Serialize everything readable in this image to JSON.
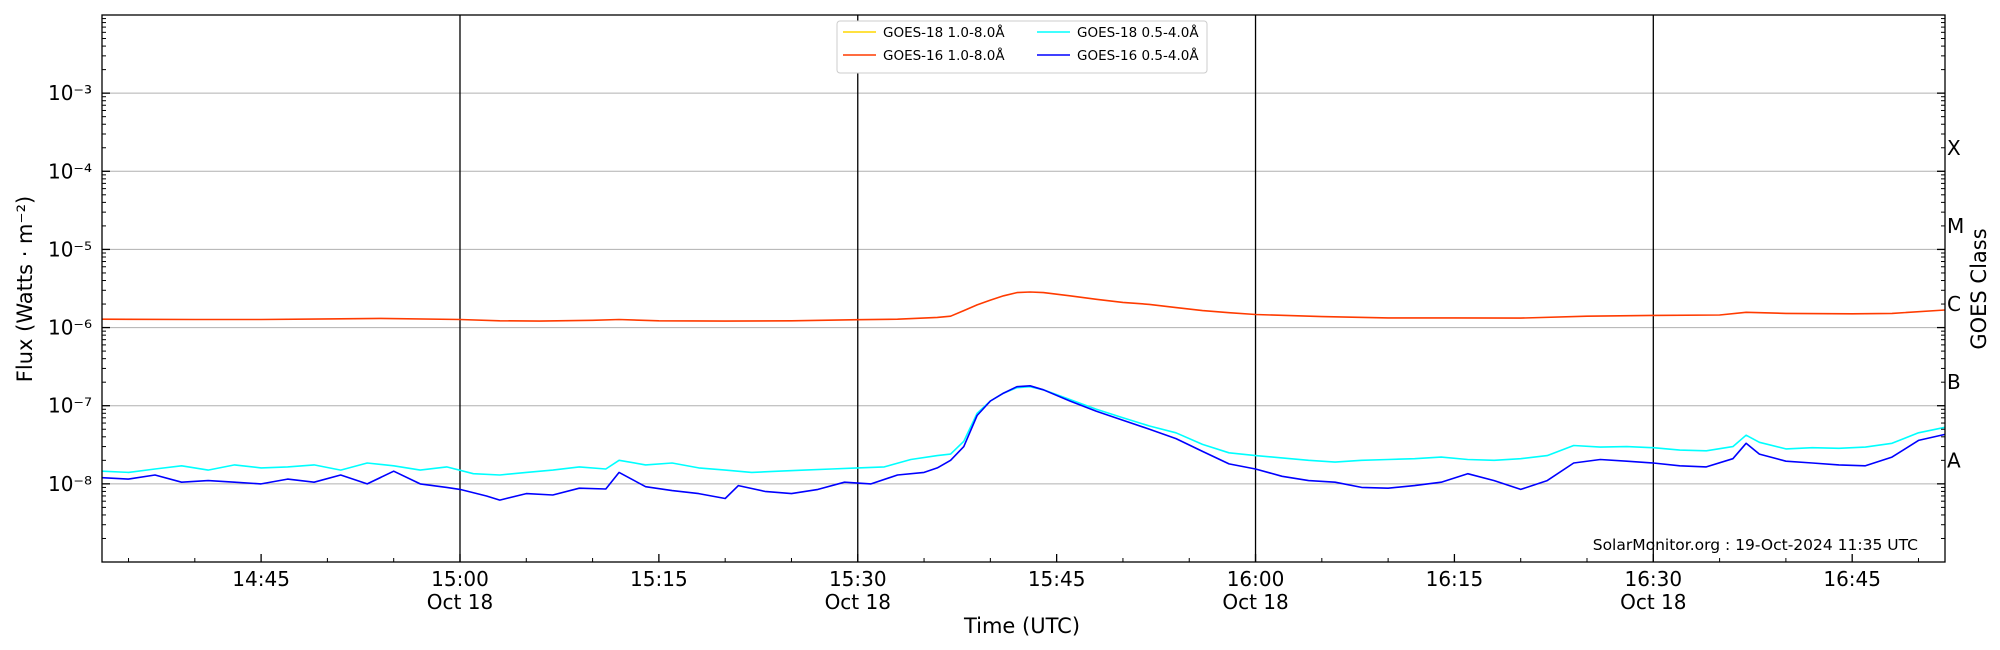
{
  "chart_data": {
    "type": "line",
    "xlabel": "Time (UTC)",
    "ylabel": "Flux (Watts · m⁻²)",
    "ylabel2": "GOES Class",
    "y_scale": "log",
    "ylim": [
      1e-09,
      0.01
    ],
    "x_range": [
      "14:33",
      "16:52"
    ],
    "x_ticks": [
      {
        "time": "14:45",
        "label": "14:45",
        "sublabel": ""
      },
      {
        "time": "15:00",
        "label": "15:00",
        "sublabel": "Oct 18"
      },
      {
        "time": "15:15",
        "label": "15:15",
        "sublabel": ""
      },
      {
        "time": "15:30",
        "label": "15:30",
        "sublabel": "Oct 18"
      },
      {
        "time": "15:45",
        "label": "15:45",
        "sublabel": ""
      },
      {
        "time": "16:00",
        "label": "16:00",
        "sublabel": "Oct 18"
      },
      {
        "time": "16:15",
        "label": "16:15",
        "sublabel": ""
      },
      {
        "time": "16:30",
        "label": "16:30",
        "sublabel": "Oct 18"
      },
      {
        "time": "16:45",
        "label": "16:45",
        "sublabel": ""
      }
    ],
    "day_lines": [
      "15:00",
      "15:30",
      "16:00",
      "16:30"
    ],
    "y_ticks": [
      {
        "value": 1e-08,
        "label": "10⁻⁸"
      },
      {
        "value": 1e-07,
        "label": "10⁻⁷"
      },
      {
        "value": 1e-06,
        "label": "10⁻⁶"
      },
      {
        "value": 1e-05,
        "label": "10⁻⁵"
      },
      {
        "value": 0.0001,
        "label": "10⁻⁴"
      },
      {
        "value": 0.001,
        "label": "10⁻³"
      }
    ],
    "class_labels": [
      {
        "label": "A",
        "value": 2e-08
      },
      {
        "label": "B",
        "value": 2e-07
      },
      {
        "label": "C",
        "value": 2e-06
      },
      {
        "label": "M",
        "value": 2e-05
      },
      {
        "label": "X",
        "value": 0.0002
      }
    ],
    "legend_position": "top-center",
    "credit": "SolarMonitor.org : 19-Oct-2024 11:35 UTC",
    "series": [
      {
        "name": "GOES-18 1.0-8.0Å",
        "color": "#ffd700",
        "points": [
          [
            "14:33",
            1.3e-06
          ],
          [
            "16:52",
            1.3e-06
          ]
        ],
        "visible": false
      },
      {
        "name": "GOES-16 1.0-8.0Å",
        "color": "#ff3b00",
        "points": [
          [
            "14:33",
            1.28e-06
          ],
          [
            "14:40",
            1.27e-06
          ],
          [
            "14:45",
            1.27e-06
          ],
          [
            "14:50",
            1.29e-06
          ],
          [
            "14:54",
            1.31e-06
          ],
          [
            "15:00",
            1.27e-06
          ],
          [
            "15:03",
            1.22e-06
          ],
          [
            "15:06",
            1.21e-06
          ],
          [
            "15:10",
            1.24e-06
          ],
          [
            "15:12",
            1.27e-06
          ],
          [
            "15:15",
            1.22e-06
          ],
          [
            "15:20",
            1.21e-06
          ],
          [
            "15:25",
            1.22e-06
          ],
          [
            "15:30",
            1.26e-06
          ],
          [
            "15:33",
            1.28e-06
          ],
          [
            "15:36",
            1.35e-06
          ],
          [
            "15:37",
            1.4e-06
          ],
          [
            "15:38",
            1.65e-06
          ],
          [
            "15:39",
            1.95e-06
          ],
          [
            "15:40",
            2.25e-06
          ],
          [
            "15:41",
            2.55e-06
          ],
          [
            "15:42",
            2.8e-06
          ],
          [
            "15:43",
            2.85e-06
          ],
          [
            "15:44",
            2.8e-06
          ],
          [
            "15:46",
            2.55e-06
          ],
          [
            "15:48",
            2.3e-06
          ],
          [
            "15:50",
            2.1e-06
          ],
          [
            "15:52",
            1.98e-06
          ],
          [
            "15:54",
            1.8e-06
          ],
          [
            "15:56",
            1.65e-06
          ],
          [
            "15:58",
            1.55e-06
          ],
          [
            "16:00",
            1.47e-06
          ],
          [
            "16:05",
            1.38e-06
          ],
          [
            "16:10",
            1.33e-06
          ],
          [
            "16:15",
            1.33e-06
          ],
          [
            "16:20",
            1.32e-06
          ],
          [
            "16:25",
            1.4e-06
          ],
          [
            "16:30",
            1.43e-06
          ],
          [
            "16:35",
            1.45e-06
          ],
          [
            "16:37",
            1.57e-06
          ],
          [
            "16:40",
            1.52e-06
          ],
          [
            "16:45",
            1.5e-06
          ],
          [
            "16:48",
            1.52e-06
          ],
          [
            "16:52",
            1.68e-06
          ]
        ]
      },
      {
        "name": "GOES-18 0.5-4.0Å",
        "color": "#00ffff",
        "points": [
          [
            "14:33",
            1.45e-08
          ],
          [
            "14:35",
            1.4e-08
          ],
          [
            "14:37",
            1.55e-08
          ],
          [
            "14:39",
            1.7e-08
          ],
          [
            "14:41",
            1.5e-08
          ],
          [
            "14:43",
            1.75e-08
          ],
          [
            "14:45",
            1.6e-08
          ],
          [
            "14:47",
            1.65e-08
          ],
          [
            "14:49",
            1.75e-08
          ],
          [
            "14:51",
            1.5e-08
          ],
          [
            "14:53",
            1.85e-08
          ],
          [
            "14:55",
            1.7e-08
          ],
          [
            "14:57",
            1.5e-08
          ],
          [
            "14:59",
            1.65e-08
          ],
          [
            "15:01",
            1.35e-08
          ],
          [
            "15:03",
            1.3e-08
          ],
          [
            "15:05",
            1.4e-08
          ],
          [
            "15:07",
            1.5e-08
          ],
          [
            "15:09",
            1.65e-08
          ],
          [
            "15:11",
            1.55e-08
          ],
          [
            "15:12",
            2e-08
          ],
          [
            "15:14",
            1.75e-08
          ],
          [
            "15:16",
            1.85e-08
          ],
          [
            "15:18",
            1.6e-08
          ],
          [
            "15:20",
            1.5e-08
          ],
          [
            "15:22",
            1.4e-08
          ],
          [
            "15:24",
            1.45e-08
          ],
          [
            "15:26",
            1.5e-08
          ],
          [
            "15:28",
            1.55e-08
          ],
          [
            "15:30",
            1.6e-08
          ],
          [
            "15:32",
            1.65e-08
          ],
          [
            "15:34",
            2.05e-08
          ],
          [
            "15:36",
            2.3e-08
          ],
          [
            "15:37",
            2.4e-08
          ],
          [
            "15:38",
            3.5e-08
          ],
          [
            "15:39",
            8e-08
          ],
          [
            "15:40",
            1.15e-07
          ],
          [
            "15:41",
            1.45e-07
          ],
          [
            "15:42",
            1.7e-07
          ],
          [
            "15:43",
            1.75e-07
          ],
          [
            "15:44",
            1.6e-07
          ],
          [
            "15:46",
            1.2e-07
          ],
          [
            "15:48",
            9e-08
          ],
          [
            "15:50",
            7e-08
          ],
          [
            "15:52",
            5.5e-08
          ],
          [
            "15:54",
            4.5e-08
          ],
          [
            "15:56",
            3.2e-08
          ],
          [
            "15:58",
            2.5e-08
          ],
          [
            "16:00",
            2.3e-08
          ],
          [
            "16:02",
            2.15e-08
          ],
          [
            "16:04",
            2e-08
          ],
          [
            "16:06",
            1.9e-08
          ],
          [
            "16:08",
            2e-08
          ],
          [
            "16:10",
            2.05e-08
          ],
          [
            "16:12",
            2.1e-08
          ],
          [
            "16:14",
            2.2e-08
          ],
          [
            "16:16",
            2.05e-08
          ],
          [
            "16:18",
            2e-08
          ],
          [
            "16:20",
            2.1e-08
          ],
          [
            "16:22",
            2.3e-08
          ],
          [
            "16:24",
            3.1e-08
          ],
          [
            "16:26",
            2.95e-08
          ],
          [
            "16:28",
            3e-08
          ],
          [
            "16:30",
            2.9e-08
          ],
          [
            "16:32",
            2.7e-08
          ],
          [
            "16:34",
            2.65e-08
          ],
          [
            "16:36",
            3e-08
          ],
          [
            "16:37",
            4.2e-08
          ],
          [
            "16:38",
            3.4e-08
          ],
          [
            "16:40",
            2.8e-08
          ],
          [
            "16:42",
            2.9e-08
          ],
          [
            "16:44",
            2.85e-08
          ],
          [
            "16:46",
            2.95e-08
          ],
          [
            "16:48",
            3.3e-08
          ],
          [
            "16:50",
            4.5e-08
          ],
          [
            "16:52",
            5.3e-08
          ]
        ]
      },
      {
        "name": "GOES-16 0.5-4.0Å",
        "color": "#0000ff",
        "points": [
          [
            "14:33",
            1.2e-08
          ],
          [
            "14:35",
            1.15e-08
          ],
          [
            "14:37",
            1.3e-08
          ],
          [
            "14:39",
            1.05e-08
          ],
          [
            "14:41",
            1.1e-08
          ],
          [
            "14:43",
            1.05e-08
          ],
          [
            "14:45",
            1e-08
          ],
          [
            "14:47",
            1.15e-08
          ],
          [
            "14:49",
            1.05e-08
          ],
          [
            "14:51",
            1.3e-08
          ],
          [
            "14:53",
            1e-08
          ],
          [
            "14:55",
            1.45e-08
          ],
          [
            "14:57",
            1e-08
          ],
          [
            "14:59",
            9e-09
          ],
          [
            "15:00",
            8.5e-09
          ],
          [
            "15:02",
            7e-09
          ],
          [
            "15:03",
            6.2e-09
          ],
          [
            "15:05",
            7.5e-09
          ],
          [
            "15:07",
            7.2e-09
          ],
          [
            "15:09",
            8.8e-09
          ],
          [
            "15:11",
            8.6e-09
          ],
          [
            "15:12",
            1.4e-08
          ],
          [
            "15:14",
            9.2e-09
          ],
          [
            "15:16",
            8.2e-09
          ],
          [
            "15:18",
            7.5e-09
          ],
          [
            "15:20",
            6.5e-09
          ],
          [
            "15:21",
            9.5e-09
          ],
          [
            "15:23",
            8e-09
          ],
          [
            "15:25",
            7.5e-09
          ],
          [
            "15:27",
            8.5e-09
          ],
          [
            "15:29",
            1.05e-08
          ],
          [
            "15:31",
            1e-08
          ],
          [
            "15:33",
            1.3e-08
          ],
          [
            "15:35",
            1.4e-08
          ],
          [
            "15:36",
            1.6e-08
          ],
          [
            "15:37",
            2e-08
          ],
          [
            "15:38",
            3e-08
          ],
          [
            "15:39",
            7.5e-08
          ],
          [
            "15:40",
            1.15e-07
          ],
          [
            "15:41",
            1.45e-07
          ],
          [
            "15:42",
            1.75e-07
          ],
          [
            "15:43",
            1.8e-07
          ],
          [
            "15:44",
            1.6e-07
          ],
          [
            "15:46",
            1.15e-07
          ],
          [
            "15:48",
            8.5e-08
          ],
          [
            "15:50",
            6.5e-08
          ],
          [
            "15:52",
            5e-08
          ],
          [
            "15:54",
            3.8e-08
          ],
          [
            "15:56",
            2.6e-08
          ],
          [
            "15:58",
            1.8e-08
          ],
          [
            "16:00",
            1.55e-08
          ],
          [
            "16:02",
            1.25e-08
          ],
          [
            "16:04",
            1.1e-08
          ],
          [
            "16:06",
            1.05e-08
          ],
          [
            "16:08",
            9e-09
          ],
          [
            "16:10",
            8.8e-09
          ],
          [
            "16:12",
            9.5e-09
          ],
          [
            "16:14",
            1.05e-08
          ],
          [
            "16:16",
            1.35e-08
          ],
          [
            "16:18",
            1.1e-08
          ],
          [
            "16:20",
            8.5e-09
          ],
          [
            "16:22",
            1.1e-08
          ],
          [
            "16:24",
            1.85e-08
          ],
          [
            "16:26",
            2.05e-08
          ],
          [
            "16:28",
            1.95e-08
          ],
          [
            "16:30",
            1.85e-08
          ],
          [
            "16:32",
            1.7e-08
          ],
          [
            "16:34",
            1.65e-08
          ],
          [
            "16:36",
            2.1e-08
          ],
          [
            "16:37",
            3.3e-08
          ],
          [
            "16:38",
            2.4e-08
          ],
          [
            "16:40",
            1.95e-08
          ],
          [
            "16:42",
            1.85e-08
          ],
          [
            "16:44",
            1.75e-08
          ],
          [
            "16:46",
            1.7e-08
          ],
          [
            "16:48",
            2.2e-08
          ],
          [
            "16:50",
            3.6e-08
          ],
          [
            "16:52",
            4.3e-08
          ]
        ]
      }
    ]
  }
}
